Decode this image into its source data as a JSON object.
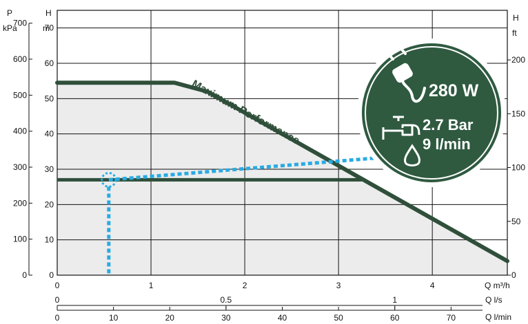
{
  "chart_data": {
    "type": "line",
    "axes": {
      "left_pressure": {
        "label": "P",
        "unit": "kPa",
        "ticks": [
          0,
          100,
          200,
          300,
          400,
          500,
          600,
          700
        ]
      },
      "left_head": {
        "label": "H",
        "unit": "m",
        "ticks": [
          0,
          10,
          20,
          30,
          40,
          50,
          60,
          70
        ]
      },
      "right_head": {
        "label": "H",
        "unit": "ft",
        "ticks": [
          0,
          50,
          100,
          150,
          200
        ]
      },
      "x_m3h": {
        "label": "Q m³/h",
        "ticks": [
          0,
          1,
          2,
          3,
          4
        ]
      },
      "x_ls": {
        "label": "Q l/s",
        "ticks": [
          0,
          0.5,
          1
        ]
      },
      "x_lmin": {
        "label": "Q l/min",
        "ticks": [
          0,
          10,
          20,
          30,
          40,
          50,
          60,
          70
        ]
      }
    },
    "ylim_m": [
      0,
      75
    ],
    "xlim_m3h": [
      0,
      4.8
    ],
    "grid": true,
    "series": [
      {
        "name": "Maximum Performance",
        "color": "#2f4f3a",
        "x": [
          0,
          1.25,
          1.6,
          4.8
        ],
        "y": [
          54.5,
          54.5,
          52,
          4
        ]
      },
      {
        "color": "#2f4f3a",
        "x": [
          0,
          3.25
        ],
        "y": [
          27,
          27
        ]
      }
    ],
    "operating_point": {
      "x": 0.55,
      "y": 27,
      "color": "#29abe2"
    },
    "dotted_line": {
      "x": [
        0.55,
        3.55
      ],
      "y": [
        27,
        33.5
      ]
    }
  },
  "badge": {
    "power": "280 W",
    "pressure": "2.7 Bar",
    "flow": "9 l/min",
    "bg_color": "#2f5a40",
    "icons": [
      "plug-icon",
      "tap-icon",
      "water-drop-icon"
    ]
  }
}
